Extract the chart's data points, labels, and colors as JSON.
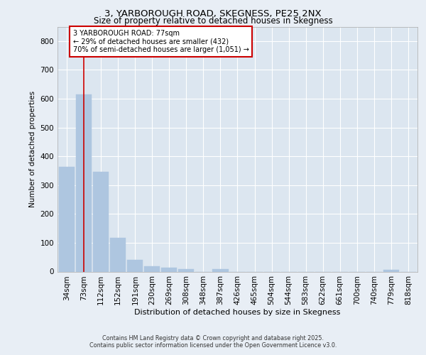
{
  "title_line1": "3, YARBOROUGH ROAD, SKEGNESS, PE25 2NX",
  "title_line2": "Size of property relative to detached houses in Skegness",
  "xlabel": "Distribution of detached houses by size in Skegness",
  "ylabel": "Number of detached properties",
  "bar_labels": [
    "34sqm",
    "73sqm",
    "112sqm",
    "152sqm",
    "191sqm",
    "230sqm",
    "269sqm",
    "308sqm",
    "348sqm",
    "387sqm",
    "426sqm",
    "465sqm",
    "504sqm",
    "544sqm",
    "583sqm",
    "622sqm",
    "661sqm",
    "700sqm",
    "740sqm",
    "779sqm",
    "818sqm"
  ],
  "bar_values": [
    363,
    614,
    345,
    116,
    40,
    19,
    13,
    9,
    0,
    8,
    0,
    0,
    0,
    0,
    0,
    0,
    0,
    0,
    0,
    6,
    0
  ],
  "bar_color": "#aec6e0",
  "bar_edge_color": "#aec6e0",
  "vline_x_index": 1,
  "vline_color": "#cc0000",
  "annotation_text": "3 YARBOROUGH ROAD: 77sqm\n← 29% of detached houses are smaller (432)\n70% of semi-detached houses are larger (1,051) →",
  "annotation_box_color": "#ffffff",
  "annotation_box_edgecolor": "#cc0000",
  "ylim": [
    0,
    850
  ],
  "yticks": [
    0,
    100,
    200,
    300,
    400,
    500,
    600,
    700,
    800
  ],
  "background_color": "#e8eef5",
  "plot_background": "#dce6f0",
  "footer_line1": "Contains HM Land Registry data © Crown copyright and database right 2025.",
  "footer_line2": "Contains public sector information licensed under the Open Government Licence v3.0."
}
